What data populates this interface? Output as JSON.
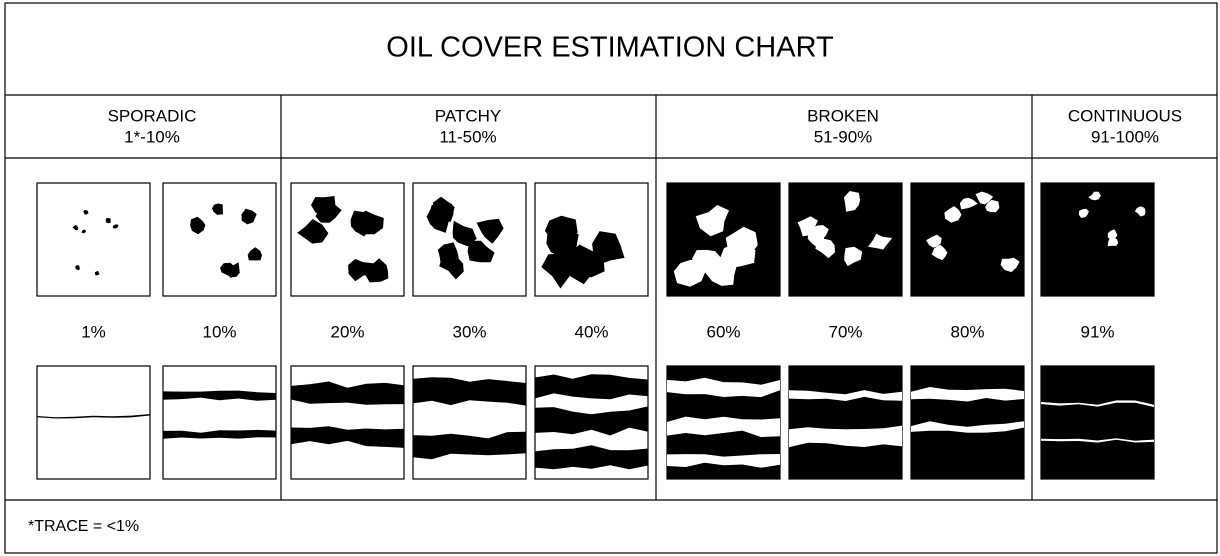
{
  "title": "OIL COVER ESTIMATION CHART",
  "groups": [
    {
      "name": "SPORADIC",
      "range": "1*-10%",
      "tiles": [
        "1%",
        "10%"
      ]
    },
    {
      "name": "PATCHY",
      "range": "11-50%",
      "tiles": [
        "20%",
        "30%",
        "40%"
      ]
    },
    {
      "name": "BROKEN",
      "range": "51-90%",
      "tiles": [
        "60%",
        "70%",
        "80%"
      ]
    },
    {
      "name": "CONTINUOUS",
      "range": "91-100%",
      "tiles": [
        "91%"
      ]
    }
  ],
  "footnote": "*TRACE = <1%"
}
